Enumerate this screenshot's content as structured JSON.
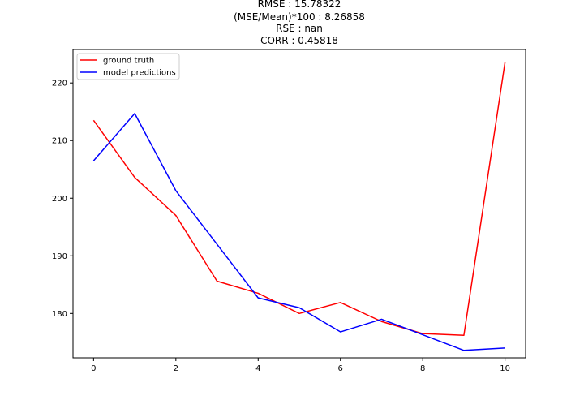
{
  "chart_data": {
    "type": "line",
    "title_lines": [
      "RMSE : 15.78322",
      "(MSE/Mean)*100 : 8.26858",
      "RSE : nan",
      "CORR : 0.45818"
    ],
    "xlabel": "",
    "ylabel": "",
    "x": [
      0,
      1,
      2,
      3,
      4,
      5,
      6,
      7,
      8,
      9,
      10
    ],
    "xlim": [
      -0.5,
      10.5
    ],
    "ylim": [
      172.3,
      225.8
    ],
    "xticks": [
      0,
      2,
      4,
      6,
      8,
      10
    ],
    "yticks": [
      180,
      190,
      200,
      210,
      220
    ],
    "grid": false,
    "legend_position": "upper-left",
    "series": [
      {
        "name": "ground truth",
        "color": "#ff0000",
        "values": [
          213.5,
          203.6,
          197.0,
          185.6,
          183.5,
          180.0,
          181.9,
          178.6,
          176.5,
          176.2,
          223.6
        ]
      },
      {
        "name": "model predictions",
        "color": "#0000ff",
        "values": [
          206.5,
          214.7,
          201.3,
          192.0,
          182.7,
          181.0,
          176.8,
          179.0,
          176.3,
          173.6,
          174.0
        ]
      }
    ]
  }
}
